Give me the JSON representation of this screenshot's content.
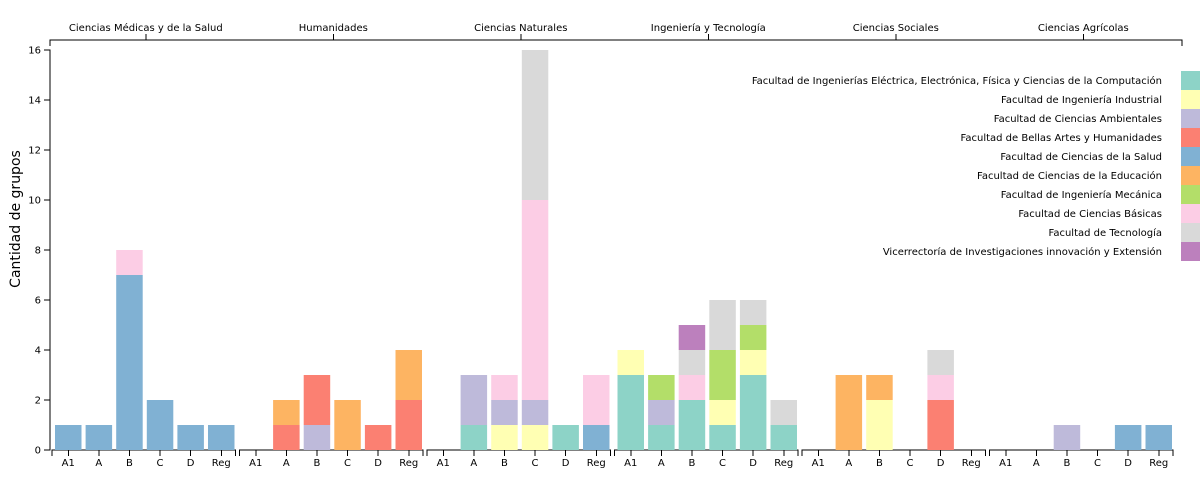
{
  "chart_data": {
    "type": "bar",
    "stacked": true,
    "ylabel": "Cantidad de grupos",
    "ylim": [
      0,
      16
    ],
    "yticks": [
      0,
      2,
      4,
      6,
      8,
      10,
      12,
      14,
      16
    ],
    "legend_position": "top-right",
    "subcategories": [
      "A1",
      "A",
      "B",
      "C",
      "D",
      "Reg"
    ],
    "series": [
      {
        "name": "Facultad de Ingenierías Eléctrica, Electrónica, Física y Ciencias de la Computación",
        "color": "#8dd3c7"
      },
      {
        "name": "Facultad de Ingeniería Industrial",
        "color": "#ffffb3"
      },
      {
        "name": "Facultad de Ciencias Ambientales",
        "color": "#bebada"
      },
      {
        "name": "Facultad de Bellas Artes y Humanidades",
        "color": "#fb8072"
      },
      {
        "name": "Facultad de Ciencias de la Salud",
        "color": "#80b1d3"
      },
      {
        "name": "Facultad de Ciencias de la Educación",
        "color": "#fdb462"
      },
      {
        "name": "Facultad de Ingeniería Mecánica",
        "color": "#b3de69"
      },
      {
        "name": "Facultad de Ciencias Básicas",
        "color": "#fccde5"
      },
      {
        "name": "Facultad de Tecnología",
        "color": "#d9d9d9"
      },
      {
        "name": "Vicerrectoría de Investigaciones innovación y Extensión",
        "color": "#bc80bd"
      }
    ],
    "groups": [
      {
        "name": "Ciencias Médicas y de la Salud",
        "values": [
          [
            0,
            0,
            0,
            0,
            1,
            0,
            0,
            0,
            0,
            0
          ],
          [
            0,
            0,
            0,
            0,
            1,
            0,
            0,
            0,
            0,
            0
          ],
          [
            0,
            0,
            0,
            0,
            7,
            0,
            0,
            1,
            0,
            0
          ],
          [
            0,
            0,
            0,
            0,
            2,
            0,
            0,
            0,
            0,
            0
          ],
          [
            0,
            0,
            0,
            0,
            1,
            0,
            0,
            0,
            0,
            0
          ],
          [
            0,
            0,
            0,
            0,
            1,
            0,
            0,
            0,
            0,
            0
          ]
        ]
      },
      {
        "name": "Humanidades",
        "values": [
          [
            0,
            0,
            0,
            0,
            0,
            0,
            0,
            0,
            0,
            0
          ],
          [
            0,
            0,
            0,
            1,
            0,
            1,
            0,
            0,
            0,
            0
          ],
          [
            0,
            0,
            1,
            2,
            0,
            0,
            0,
            0,
            0,
            0
          ],
          [
            0,
            0,
            0,
            0,
            0,
            2,
            0,
            0,
            0,
            0
          ],
          [
            0,
            0,
            0,
            1,
            0,
            0,
            0,
            0,
            0,
            0
          ],
          [
            0,
            0,
            0,
            2,
            0,
            2,
            0,
            0,
            0,
            0
          ]
        ]
      },
      {
        "name": "Ciencias Naturales",
        "values": [
          [
            0,
            0,
            0,
            0,
            0,
            0,
            0,
            0,
            0,
            0
          ],
          [
            1,
            0,
            2,
            0,
            0,
            0,
            0,
            0,
            0,
            0
          ],
          [
            0,
            1,
            1,
            0,
            0,
            0,
            0,
            1,
            0,
            0
          ],
          [
            0,
            1,
            1,
            0,
            0,
            0,
            0,
            8,
            6,
            0
          ],
          [
            1,
            0,
            0,
            0,
            0,
            0,
            0,
            0,
            0,
            0
          ],
          [
            0,
            0,
            0,
            0,
            1,
            0,
            0,
            2,
            0,
            0
          ]
        ]
      },
      {
        "name": "Ingeniería y Tecnología",
        "values": [
          [
            3,
            1,
            0,
            0,
            0,
            0,
            0,
            0,
            0,
            0
          ],
          [
            1,
            0,
            1,
            0,
            0,
            0,
            1,
            0,
            0,
            0
          ],
          [
            2,
            0,
            0,
            0,
            0,
            0,
            0,
            1,
            1,
            1
          ],
          [
            1,
            1,
            0,
            0,
            0,
            0,
            2,
            0,
            2,
            0
          ],
          [
            3,
            1,
            0,
            0,
            0,
            0,
            1,
            0,
            1,
            0
          ],
          [
            1,
            0,
            0,
            0,
            0,
            0,
            0,
            0,
            1,
            0
          ]
        ]
      },
      {
        "name": "Ciencias Sociales",
        "values": [
          [
            0,
            0,
            0,
            0,
            0,
            0,
            0,
            0,
            0,
            0
          ],
          [
            0,
            0,
            0,
            0,
            0,
            3,
            0,
            0,
            0,
            0
          ],
          [
            0,
            2,
            0,
            0,
            0,
            1,
            0,
            0,
            0,
            0
          ],
          [
            0,
            0,
            0,
            0,
            0,
            0,
            0,
            0,
            0,
            0
          ],
          [
            0,
            0,
            0,
            2,
            0,
            0,
            0,
            1,
            1,
            0
          ],
          [
            0,
            0,
            0,
            0,
            0,
            0,
            0,
            0,
            0,
            0
          ]
        ]
      },
      {
        "name": "Ciencias Agrícolas",
        "values": [
          [
            0,
            0,
            0,
            0,
            0,
            0,
            0,
            0,
            0,
            0
          ],
          [
            0,
            0,
            0,
            0,
            0,
            0,
            0,
            0,
            0,
            0
          ],
          [
            0,
            0,
            1,
            0,
            0,
            0,
            0,
            0,
            0,
            0
          ],
          [
            0,
            0,
            0,
            0,
            0,
            0,
            0,
            0,
            0,
            0
          ],
          [
            0,
            0,
            0,
            0,
            1,
            0,
            0,
            0,
            0,
            0
          ],
          [
            0,
            0,
            0,
            0,
            1,
            0,
            0,
            0,
            0,
            0
          ]
        ]
      }
    ]
  }
}
